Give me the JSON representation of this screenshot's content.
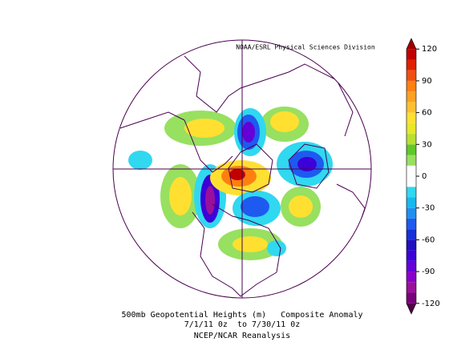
{
  "header": {
    "credit": "NOAA/ESRL Physical Sciences Division"
  },
  "caption": {
    "line1": "500mb Geopotential Heights (m)   Composite Anomaly",
    "line2": "7/1/11 0z  to 7/30/11 0z",
    "line3": "NCEP/NCAR Reanalysis"
  },
  "colorbar": {
    "lim": [
      -130,
      130
    ],
    "ticks": [
      120,
      90,
      60,
      30,
      0,
      -30,
      -60,
      -90,
      -120
    ],
    "colors": [
      "#500048",
      "#78007a",
      "#9a109a",
      "#8a00c8",
      "#6400d8",
      "#3c00d8",
      "#2010c0",
      "#1830d8",
      "#1e5af0",
      "#1e90f0",
      "#18b8f0",
      "#30d8f0",
      "#ffffff",
      "#ffffff",
      "#98e060",
      "#60c828",
      "#b8e030",
      "#e8e828",
      "#ffe030",
      "#ffc030",
      "#ffa020",
      "#ff8010",
      "#f05010",
      "#e02000",
      "#c00000",
      "#a00000"
    ]
  }
}
